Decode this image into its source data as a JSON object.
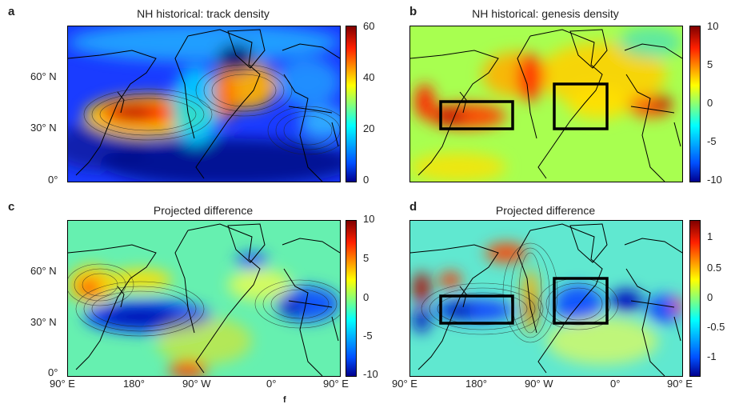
{
  "panels": [
    {
      "letter": "a",
      "title": "NH historical: track density",
      "colorbar_ticks": [
        "60",
        "40",
        "20",
        "0"
      ],
      "y_ticks": [
        "60° N",
        "30° N",
        "0°"
      ],
      "variant": "track"
    },
    {
      "letter": "b",
      "title": "NH historical: genesis density",
      "colorbar_ticks": [
        "10",
        "5",
        "0",
        "-5",
        "-10"
      ],
      "variant": "genesis"
    },
    {
      "letter": "c",
      "title": "Projected difference",
      "colorbar_ticks": [
        "10",
        "5",
        "0",
        "-5",
        "-10"
      ],
      "y_ticks": [
        "60° N",
        "30° N",
        "0°"
      ],
      "x_ticks": [
        "90° E",
        "180°",
        "90° W",
        "0°",
        "90° E"
      ],
      "variant": "diffc"
    },
    {
      "letter": "d",
      "title": "Projected difference",
      "colorbar_ticks": [
        "1",
        "0.5",
        "0",
        "-0.5",
        "-1"
      ],
      "x_ticks": [
        "90° E",
        "180°",
        "90° W",
        "0°",
        "90° E"
      ],
      "variant": "diffd"
    }
  ],
  "bottom_fragment": "f",
  "colors": {
    "jet_dark_blue": "#00008f",
    "jet_blue": "#0050ff",
    "jet_cyan": "#00ffff",
    "jet_yellow": "#ffff00",
    "jet_red": "#ff2000",
    "jet_dark_red": "#800000"
  }
}
